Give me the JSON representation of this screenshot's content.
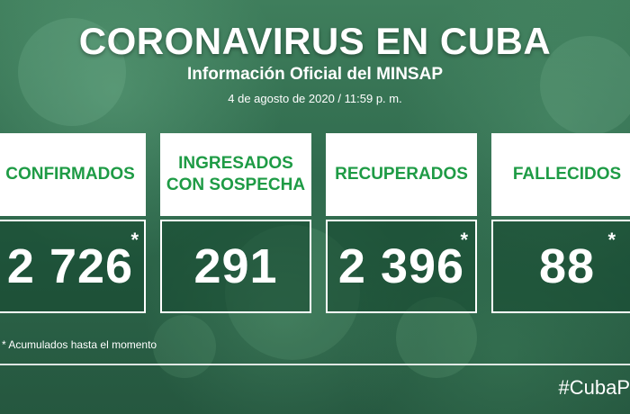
{
  "header": {
    "title": "CORONAVIRUS EN CUBA",
    "subtitle": "Información Oficial del MINSAP",
    "date": "4 de agosto de 2020 / 11:59 p. m."
  },
  "stats": [
    {
      "label_lines": [
        "CONFIRMADOS"
      ],
      "value": "2 726",
      "asterisk": "*"
    },
    {
      "label_lines": [
        "INGRESADOS",
        "CON SOSPECHA"
      ],
      "value": "291",
      "asterisk": ""
    },
    {
      "label_lines": [
        "RECUPERADOS"
      ],
      "value": "2 396",
      "asterisk": "*"
    },
    {
      "label_lines": [
        "FALLECIDOS"
      ],
      "value": "88",
      "asterisk": "*"
    }
  ],
  "footnote": "* Acumulados hasta el momento",
  "hashtag": "#CubaP",
  "colors": {
    "label_green": "#1e9b45",
    "background_green": "#2f6a4c"
  }
}
